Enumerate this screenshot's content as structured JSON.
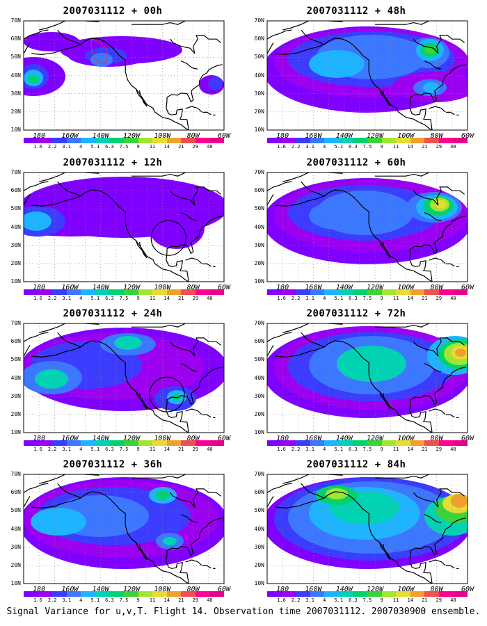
{
  "caption": "Signal Variance for u,v,T. Flight 14. Observation time 2007031112. 2007030900 ensemble.",
  "lat_labels": [
    "70N",
    "60N",
    "50N",
    "40N",
    "30N",
    "20N",
    "10N"
  ],
  "lon_labels": [
    "180",
    "160W",
    "140W",
    "120W",
    "100W",
    "80W",
    "60W"
  ],
  "colorbar": {
    "labels": [
      "1.6",
      "2.2",
      "3.1",
      "4",
      "5.1",
      "6.3",
      "7.5",
      "9",
      "11",
      "14",
      "21",
      "29",
      "40"
    ],
    "colors": [
      "#8000ff",
      "#9c00f0",
      "#3c3cff",
      "#3c78ff",
      "#1eb4ff",
      "#00d2b4",
      "#00d26e",
      "#3cd23c",
      "#a0e632",
      "#e6dc32",
      "#f0a032",
      "#f05050",
      "#ff0090",
      "#e6008c"
    ]
  },
  "colors": {
    "land": "#ffffff",
    "coast": "#000000",
    "grid": "#888888",
    "circle": "#000000",
    "outline": "#ff2a2a"
  },
  "panels": [
    {
      "title": "2007031112 + 00h"
    },
    {
      "title": "2007031112 + 48h"
    },
    {
      "title": "2007031112 + 12h"
    },
    {
      "title": "2007031112 + 60h"
    },
    {
      "title": "2007031112 + 24h"
    },
    {
      "title": "2007031112 + 72h"
    },
    {
      "title": "2007031112 + 36h"
    },
    {
      "title": "2007031112 + 84h"
    }
  ]
}
